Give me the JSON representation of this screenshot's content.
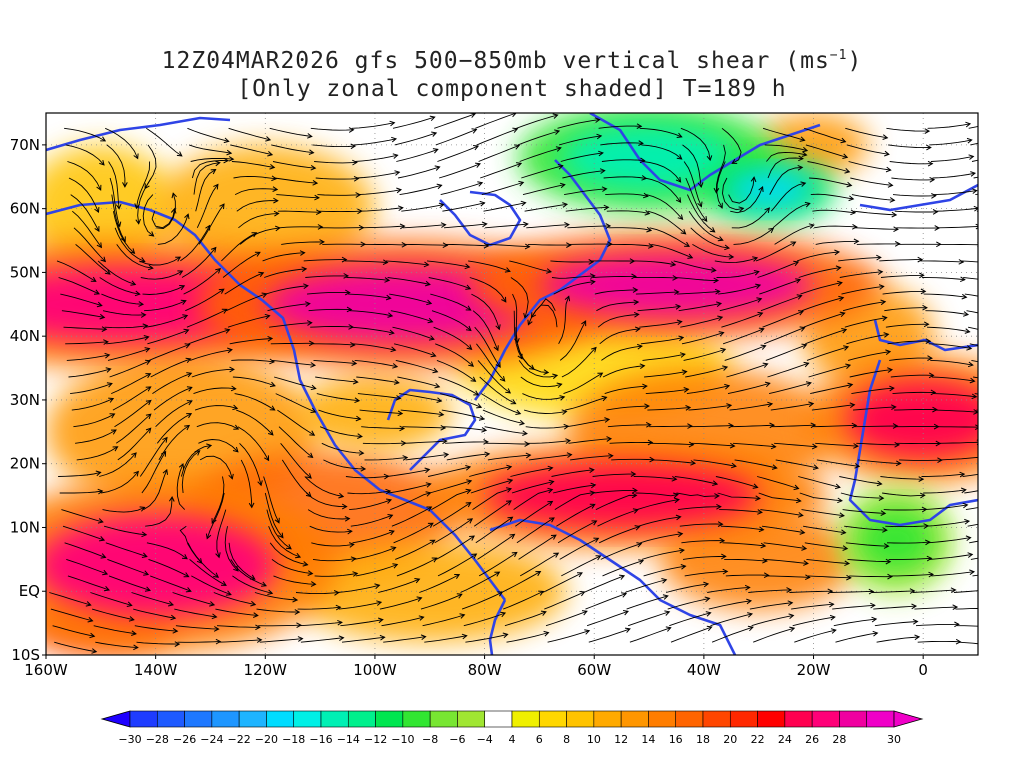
{
  "title": {
    "line1_prefix": "12Z04MAR2026 gfs 500−850mb vertical shear (ms",
    "line1_sup": "−1",
    "line1_suffix": ")",
    "line2": "[Only zonal component shaded] T=189 h"
  },
  "map": {
    "lon_range": [
      -160,
      10
    ],
    "lat_range": [
      -10,
      75
    ],
    "projection": "equirectangular",
    "grid": "dotted",
    "coastline_color": "#2f44e6",
    "streamline_color": "#000000",
    "lat_ticks": [
      {
        "value": 70,
        "label": "70N"
      },
      {
        "value": 60,
        "label": "60N"
      },
      {
        "value": 50,
        "label": "50N"
      },
      {
        "value": 40,
        "label": "40N"
      },
      {
        "value": 30,
        "label": "30N"
      },
      {
        "value": 20,
        "label": "20N"
      },
      {
        "value": 10,
        "label": "10N"
      },
      {
        "value": 0,
        "label": "EQ"
      },
      {
        "value": -10,
        "label": "10S"
      }
    ],
    "lon_ticks": [
      {
        "value": -160,
        "label": "160W"
      },
      {
        "value": -140,
        "label": "140W"
      },
      {
        "value": -120,
        "label": "120W"
      },
      {
        "value": -100,
        "label": "100W"
      },
      {
        "value": -80,
        "label": "80W"
      },
      {
        "value": -60,
        "label": "60W"
      },
      {
        "value": -40,
        "label": "40W"
      },
      {
        "value": -20,
        "label": "20W"
      },
      {
        "value": 0,
        "label": "0"
      }
    ],
    "shade_regions": [
      {
        "name": "north-pacific-jet",
        "shear": 26,
        "lon": -145,
        "lat": 45,
        "rx": 28,
        "ry": 6
      },
      {
        "name": "north-america-jet",
        "shear": 28,
        "lon": -95,
        "lat": 45,
        "rx": 25,
        "ry": 6
      },
      {
        "name": "north-atlantic-jet",
        "shear": 28,
        "lon": -45,
        "lat": 48,
        "rx": 25,
        "ry": 5
      },
      {
        "name": "tropical-pacific-jet",
        "shear": 26,
        "lon": -140,
        "lat": 4,
        "rx": 22,
        "ry": 8
      },
      {
        "name": "caribbean-atlantic-jet",
        "shear": 24,
        "lon": -55,
        "lat": 15,
        "rx": 25,
        "ry": 5
      },
      {
        "name": "africa-jet",
        "shear": 24,
        "lon": 0,
        "lat": 27,
        "rx": 14,
        "ry": 6
      },
      {
        "name": "greenland-easterlies",
        "shear": -16,
        "lon": -50,
        "lat": 68,
        "rx": 16,
        "ry": 5
      },
      {
        "name": "labrador-easterlies",
        "shear": -20,
        "lon": -28,
        "lat": 63,
        "rx": 8,
        "ry": 3
      },
      {
        "name": "west-africa-easterlies",
        "shear": -10,
        "lon": -5,
        "lat": 8,
        "rx": 7,
        "ry": 5
      }
    ]
  },
  "colorbar": {
    "labels": [
      "−30",
      "−28",
      "−26",
      "−24",
      "−22",
      "−20",
      "−18",
      "−16",
      "−14",
      "−12",
      "−10",
      "−8",
      "−6",
      "−4",
      "4",
      "6",
      "8",
      "10",
      "12",
      "14",
      "16",
      "18",
      "20",
      "22",
      "24",
      "26",
      "28",
      "30"
    ],
    "low_arrow_color": "#1e00ff",
    "high_arrow_color": "#f000c8",
    "colors": [
      "#1e3cff",
      "#1e5aff",
      "#1e78ff",
      "#1e96ff",
      "#1eb4ff",
      "#00dcff",
      "#00f0e6",
      "#00f0b4",
      "#00f08c",
      "#00e650",
      "#32e632",
      "#78e632",
      "#a0e632",
      "#ffffff",
      "#f0f000",
      "#ffd700",
      "#ffc300",
      "#ffaa00",
      "#ff9600",
      "#ff7d00",
      "#ff6400",
      "#ff4600",
      "#ff2800",
      "#ff0000",
      "#ff0050",
      "#ff0078",
      "#f000a0",
      "#f000c8"
    ]
  }
}
